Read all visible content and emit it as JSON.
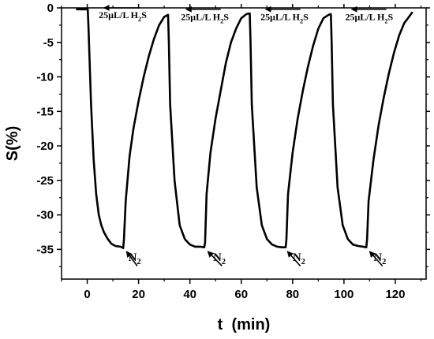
{
  "chart_data": {
    "type": "line",
    "xlabel": "t  (min)",
    "ylabel": "S(%)",
    "xlim": [
      -10,
      132
    ],
    "ylim": [
      -39.3,
      0
    ],
    "xticks": [
      0,
      20,
      40,
      60,
      80,
      100,
      120
    ],
    "yticks": [
      0,
      -5,
      -10,
      -15,
      -20,
      -25,
      -30,
      -35
    ],
    "grid": false,
    "series": [
      {
        "color": "#000000",
        "x": [
          -4,
          0.2,
          0.5,
          1.5,
          2.5,
          3.5,
          4.5,
          5.5,
          6.5,
          8,
          9.5,
          11,
          13,
          14,
          14.3,
          15,
          16.5,
          18,
          20,
          22,
          24,
          26,
          28,
          30,
          31.5,
          31.8,
          32.3,
          34,
          36,
          38,
          40,
          42,
          44,
          45.6,
          45.9,
          46.5,
          48,
          50,
          52,
          54,
          56,
          58,
          60,
          62,
          63.3,
          63.6,
          64.1,
          66,
          68,
          70,
          72,
          74,
          76,
          77.3,
          77.6,
          78.2,
          80,
          82,
          84,
          86,
          88,
          90,
          92,
          94,
          94.9,
          95.2,
          95.7,
          97.5,
          99.5,
          101.5,
          103.5,
          105.5,
          107.5,
          108.7,
          109,
          109.6,
          111.5,
          113.5,
          115.5,
          117.5,
          119.5,
          121.5,
          123.5,
          125.5,
          126.5
        ],
        "y": [
          -0.2,
          -0.2,
          -3,
          -14,
          -22,
          -27,
          -30,
          -31.5,
          -32.5,
          -33.5,
          -34.2,
          -34.5,
          -34.6,
          -34.8,
          -33.5,
          -28,
          -21.5,
          -17.5,
          -13.5,
          -10,
          -7,
          -4.5,
          -2.5,
          -1.3,
          -1,
          -5,
          -14,
          -25,
          -31.5,
          -33.5,
          -34.3,
          -34.6,
          -34.6,
          -34.7,
          -34,
          -27,
          -21,
          -16,
          -12,
          -8,
          -5,
          -3,
          -1.5,
          -0.9,
          -0.8,
          -5,
          -14,
          -26,
          -31.5,
          -33.5,
          -34.3,
          -34.6,
          -34.7,
          -34.7,
          -33.5,
          -27,
          -21,
          -16,
          -12,
          -8.5,
          -5.5,
          -3,
          -1.5,
          -1,
          -0.9,
          -5,
          -14,
          -26,
          -31.5,
          -33.5,
          -34.3,
          -34.5,
          -34.6,
          -34.7,
          -33.5,
          -28,
          -22,
          -17,
          -13,
          -9.5,
          -6.5,
          -4,
          -2.2,
          -1.2,
          -0.7
        ]
      }
    ],
    "annotations": [
      {
        "text_main": "25μL/L H",
        "sub": "2",
        "text_tail": "S",
        "x": 4.5,
        "y": -1.0,
        "arrow_from": 20.5,
        "arrow_to": 6.5,
        "arrow_y": 0
      },
      {
        "text_main": "25μL/L H",
        "sub": "2",
        "text_tail": "S",
        "x": 36.5,
        "y": -1.3,
        "arrow_from": 52,
        "arrow_to": 38.5,
        "arrow_y": -0.2
      },
      {
        "text_main": "25μL/L H",
        "sub": "2",
        "text_tail": "S",
        "x": 67.5,
        "y": -1.3,
        "arrow_from": 83,
        "arrow_to": 69.5,
        "arrow_y": -0.2
      },
      {
        "text_main": "25μL/L H",
        "sub": "2",
        "text_tail": "S",
        "x": 100.5,
        "y": -1.3,
        "arrow_from": 116.5,
        "arrow_to": 103,
        "arrow_y": -0.2
      },
      {
        "text_main": "N",
        "sub": "2",
        "text_tail": "",
        "x": 16,
        "y": -36.1,
        "arrow_from_xy": [
          19.5,
          -37.4
        ],
        "arrow_to_xy": [
          15.3,
          -35.3
        ]
      },
      {
        "text_main": "N",
        "sub": "2",
        "text_tail": "",
        "x": 49,
        "y": -36.1,
        "arrow_from_xy": [
          52.5,
          -37.4
        ],
        "arrow_to_xy": [
          47,
          -35.3
        ]
      },
      {
        "text_main": "N",
        "sub": "2",
        "text_tail": "",
        "x": 80,
        "y": -36.1,
        "arrow_from_xy": [
          83,
          -37.4
        ],
        "arrow_to_xy": [
          78,
          -35.3
        ]
      },
      {
        "text_main": "N",
        "sub": "2",
        "text_tail": "",
        "x": 111.5,
        "y": -36.1,
        "arrow_from_xy": [
          115,
          -37.4
        ],
        "arrow_to_xy": [
          110,
          -35.3
        ]
      }
    ]
  }
}
